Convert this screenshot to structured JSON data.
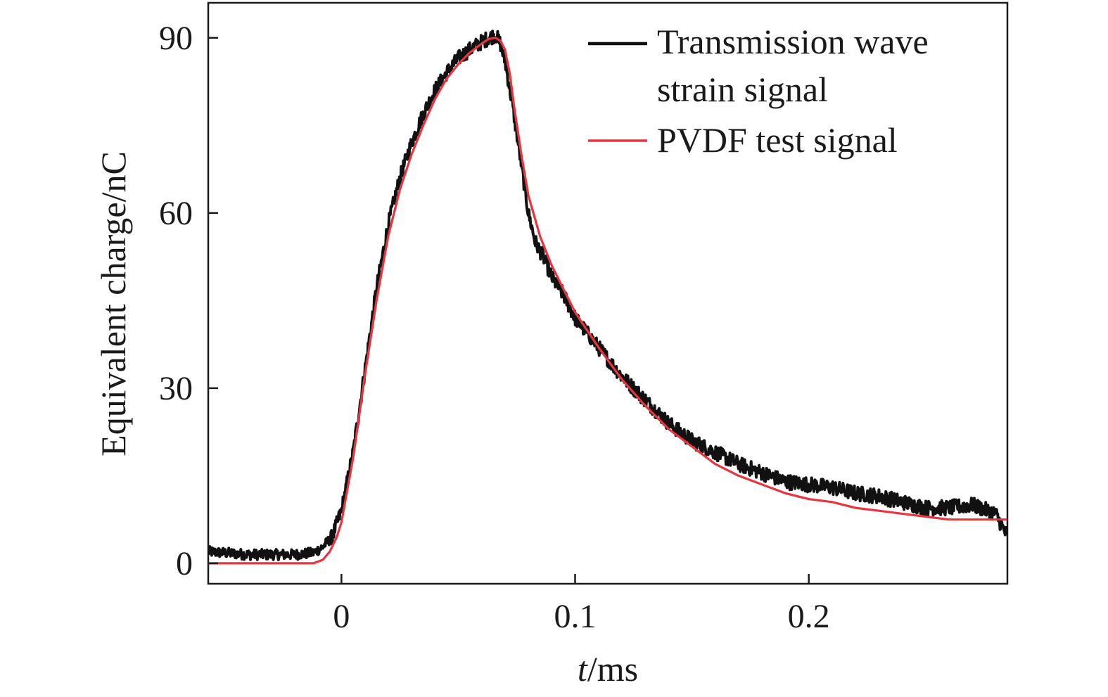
{
  "chart_data": {
    "type": "line",
    "title": "",
    "xlabel_italic": "t",
    "xlabel_rest": "/ms",
    "ylabel": "Equivalent charge/nC",
    "xlim": [
      -0.057,
      0.285
    ],
    "ylim": [
      -3.5,
      96
    ],
    "x_ticks": [
      0,
      0.1,
      0.2
    ],
    "x_tick_labels": [
      "0",
      "0.1",
      "0.2"
    ],
    "y_ticks": [
      0,
      30,
      60,
      90
    ],
    "y_tick_labels": [
      "0",
      "30",
      "60",
      "90"
    ],
    "grid": false,
    "legend_position": "top-right",
    "series": [
      {
        "name": "Transmission wave strain signal",
        "legend_lines": [
          "Transmission wave",
          "strain signal"
        ],
        "color": "#111111",
        "noise": true,
        "x": [
          -0.057,
          -0.04,
          -0.02,
          -0.012,
          -0.008,
          -0.004,
          0,
          0.005,
          0.01,
          0.015,
          0.02,
          0.025,
          0.03,
          0.035,
          0.04,
          0.045,
          0.05,
          0.055,
          0.06,
          0.063,
          0.066,
          0.068,
          0.07,
          0.073,
          0.076,
          0.08,
          0.083,
          0.087,
          0.09,
          0.095,
          0.1,
          0.11,
          0.12,
          0.13,
          0.14,
          0.15,
          0.16,
          0.17,
          0.18,
          0.19,
          0.2,
          0.21,
          0.22,
          0.23,
          0.24,
          0.25,
          0.26,
          0.27,
          0.28,
          0.285
        ],
        "y": [
          2,
          1.5,
          1.5,
          1.8,
          2.8,
          4.5,
          9,
          19,
          33,
          47,
          58,
          66,
          72,
          77,
          81,
          84,
          86.5,
          88,
          89.3,
          90,
          90.5,
          89,
          86,
          79,
          71,
          60,
          55,
          52,
          49,
          46,
          42,
          37,
          32,
          28,
          24,
          21,
          19,
          17,
          15.5,
          14,
          13.5,
          13,
          12,
          11.5,
          10.5,
          9.5,
          9.5,
          10,
          8.5,
          4.5
        ]
      },
      {
        "name": "PVDF test signal",
        "legend_lines": [
          "PVDF test signal"
        ],
        "color": "#e8343f",
        "noise": false,
        "x": [
          -0.057,
          -0.02,
          -0.012,
          -0.008,
          -0.005,
          -0.002,
          0,
          0.005,
          0.01,
          0.015,
          0.02,
          0.025,
          0.03,
          0.035,
          0.04,
          0.045,
          0.05,
          0.055,
          0.06,
          0.063,
          0.066,
          0.068,
          0.07,
          0.072,
          0.074,
          0.077,
          0.08,
          0.085,
          0.09,
          0.095,
          0.1,
          0.11,
          0.12,
          0.13,
          0.14,
          0.15,
          0.16,
          0.17,
          0.18,
          0.19,
          0.2,
          0.21,
          0.22,
          0.23,
          0.24,
          0.25,
          0.26,
          0.27,
          0.28,
          0.285
        ],
        "y": [
          0,
          0,
          0,
          0.6,
          2,
          4.5,
          7,
          18,
          32,
          45,
          56,
          64,
          70,
          75,
          79.5,
          83,
          85.5,
          87.5,
          89,
          89.8,
          90,
          89.5,
          88,
          84,
          78,
          70,
          63,
          56,
          51,
          47,
          43,
          37,
          31.5,
          27,
          23,
          20,
          17,
          15,
          13.5,
          12,
          11,
          10.5,
          9.5,
          9,
          8.5,
          8,
          7.5,
          7.5,
          7.5,
          7.5
        ]
      }
    ]
  }
}
